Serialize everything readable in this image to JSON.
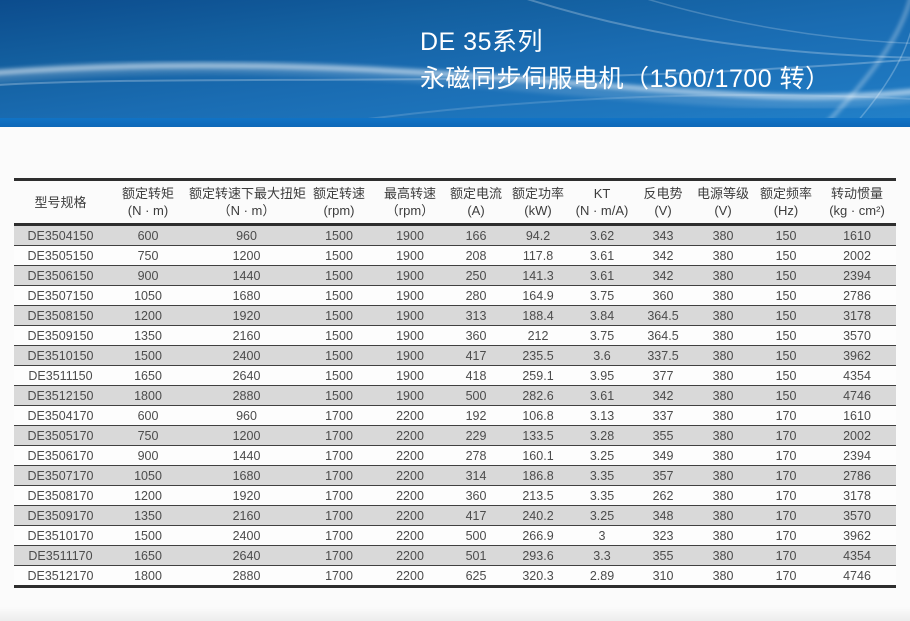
{
  "banner": {
    "title_line1": "DE 35系列",
    "title_line2": "永磁同步伺服电机（1500/1700 转）",
    "colors": {
      "banner_blue_top": "#0c4c8d",
      "banner_blue_bottom": "#2280c8",
      "bottom_strip": "#0d68b8",
      "title_text": "#ffffff"
    }
  },
  "table": {
    "columns": [
      {
        "label": "型号规格",
        "unit": ""
      },
      {
        "label": "额定转矩",
        "unit": "(N · m)"
      },
      {
        "label": "额定转速下最大扭矩",
        "unit": "（N · m）"
      },
      {
        "label": "额定转速",
        "unit": "(rpm)"
      },
      {
        "label": "最高转速",
        "unit": "（rpm）"
      },
      {
        "label": "额定电流",
        "unit": "(A)"
      },
      {
        "label": "额定功率",
        "unit": "(kW)"
      },
      {
        "label": "KT",
        "unit": "(N · m/A)"
      },
      {
        "label": "反电势",
        "unit": "(V)"
      },
      {
        "label": "电源等级",
        "unit": "(V)"
      },
      {
        "label": "额定频率",
        "unit": "(Hz)"
      },
      {
        "label": "转动惯量",
        "unit": "(kg · cm²)"
      }
    ],
    "rows": [
      [
        "DE3504150",
        "600",
        "960",
        "1500",
        "1900",
        "166",
        "94.2",
        "3.62",
        "343",
        "380",
        "150",
        "1610"
      ],
      [
        "DE3505150",
        "750",
        "1200",
        "1500",
        "1900",
        "208",
        "117.8",
        "3.61",
        "342",
        "380",
        "150",
        "2002"
      ],
      [
        "DE3506150",
        "900",
        "1440",
        "1500",
        "1900",
        "250",
        "141.3",
        "3.61",
        "342",
        "380",
        "150",
        "2394"
      ],
      [
        "DE3507150",
        "1050",
        "1680",
        "1500",
        "1900",
        "280",
        "164.9",
        "3.75",
        "360",
        "380",
        "150",
        "2786"
      ],
      [
        "DE3508150",
        "1200",
        "1920",
        "1500",
        "1900",
        "313",
        "188.4",
        "3.84",
        "364.5",
        "380",
        "150",
        "3178"
      ],
      [
        "DE3509150",
        "1350",
        "2160",
        "1500",
        "1900",
        "360",
        "212",
        "3.75",
        "364.5",
        "380",
        "150",
        "3570"
      ],
      [
        "DE3510150",
        "1500",
        "2400",
        "1500",
        "1900",
        "417",
        "235.5",
        "3.6",
        "337.5",
        "380",
        "150",
        "3962"
      ],
      [
        "DE3511150",
        "1650",
        "2640",
        "1500",
        "1900",
        "418",
        "259.1",
        "3.95",
        "377",
        "380",
        "150",
        "4354"
      ],
      [
        "DE3512150",
        "1800",
        "2880",
        "1500",
        "1900",
        "500",
        "282.6",
        "3.61",
        "342",
        "380",
        "150",
        "4746"
      ],
      [
        "DE3504170",
        "600",
        "960",
        "1700",
        "2200",
        "192",
        "106.8",
        "3.13",
        "337",
        "380",
        "170",
        "1610"
      ],
      [
        "DE3505170",
        "750",
        "1200",
        "1700",
        "2200",
        "229",
        "133.5",
        "3.28",
        "355",
        "380",
        "170",
        "2002"
      ],
      [
        "DE3506170",
        "900",
        "1440",
        "1700",
        "2200",
        "278",
        "160.1",
        "3.25",
        "349",
        "380",
        "170",
        "2394"
      ],
      [
        "DE3507170",
        "1050",
        "1680",
        "1700",
        "2200",
        "314",
        "186.8",
        "3.35",
        "357",
        "380",
        "170",
        "2786"
      ],
      [
        "DE3508170",
        "1200",
        "1920",
        "1700",
        "2200",
        "360",
        "213.5",
        "3.35",
        "262",
        "380",
        "170",
        "3178"
      ],
      [
        "DE3509170",
        "1350",
        "2160",
        "1700",
        "2200",
        "417",
        "240.2",
        "3.25",
        "348",
        "380",
        "170",
        "3570"
      ],
      [
        "DE3510170",
        "1500",
        "2400",
        "1700",
        "2200",
        "500",
        "266.9",
        "3",
        "323",
        "380",
        "170",
        "3962"
      ],
      [
        "DE3511170",
        "1650",
        "2640",
        "1700",
        "2200",
        "501",
        "293.6",
        "3.3",
        "355",
        "380",
        "170",
        "4354"
      ],
      [
        "DE3512170",
        "1800",
        "2880",
        "1700",
        "2200",
        "625",
        "320.3",
        "2.89",
        "310",
        "380",
        "170",
        "4746"
      ]
    ]
  }
}
